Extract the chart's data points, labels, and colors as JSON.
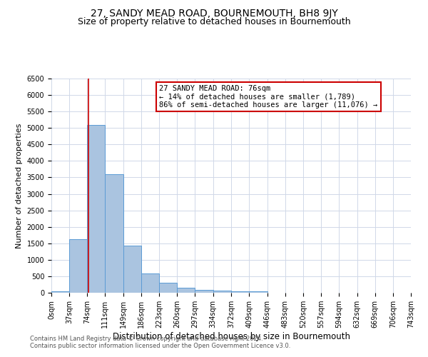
{
  "title": "27, SANDY MEAD ROAD, BOURNEMOUTH, BH8 9JY",
  "subtitle": "Size of property relative to detached houses in Bournemouth",
  "xlabel": "Distribution of detached houses by size in Bournemouth",
  "ylabel": "Number of detached properties",
  "footnote1": "Contains HM Land Registry data © Crown copyright and database right 2024.",
  "footnote2": "Contains public sector information licensed under the Open Government Licence v3.0.",
  "bin_edges": [
    0,
    37,
    74,
    111,
    149,
    186,
    223,
    260,
    297,
    334,
    372,
    409,
    446,
    483,
    520,
    557,
    594,
    632,
    669,
    706,
    743
  ],
  "bin_labels": [
    "0sqm",
    "37sqm",
    "74sqm",
    "111sqm",
    "149sqm",
    "186sqm",
    "223sqm",
    "260sqm",
    "297sqm",
    "334sqm",
    "372sqm",
    "409sqm",
    "446sqm",
    "483sqm",
    "520sqm",
    "557sqm",
    "594sqm",
    "632sqm",
    "669sqm",
    "706sqm",
    "743sqm"
  ],
  "counts": [
    50,
    1620,
    5100,
    3600,
    1420,
    590,
    310,
    155,
    90,
    60,
    50,
    40,
    0,
    0,
    0,
    0,
    0,
    0,
    0,
    0
  ],
  "bar_color": "#aac4e0",
  "bar_edge_color": "#5b9bd5",
  "property_sqm": 76,
  "vline_color": "#cc0000",
  "annotation_title": "27 SANDY MEAD ROAD: 76sqm",
  "annotation_line1": "← 14% of detached houses are smaller (1,789)",
  "annotation_line2": "86% of semi-detached houses are larger (11,076) →",
  "annotation_box_color": "#ffffff",
  "annotation_box_edge_color": "#cc0000",
  "ylim": [
    0,
    6500
  ],
  "yticks": [
    0,
    500,
    1000,
    1500,
    2000,
    2500,
    3000,
    3500,
    4000,
    4500,
    5000,
    5500,
    6000,
    6500
  ],
  "background_color": "#ffffff",
  "grid_color": "#d0d8e8",
  "title_fontsize": 10,
  "subtitle_fontsize": 9,
  "axis_label_fontsize": 8.5,
  "tick_fontsize": 7,
  "annotation_fontsize": 7.5,
  "footnote_fontsize": 6,
  "ylabel_fontsize": 8
}
